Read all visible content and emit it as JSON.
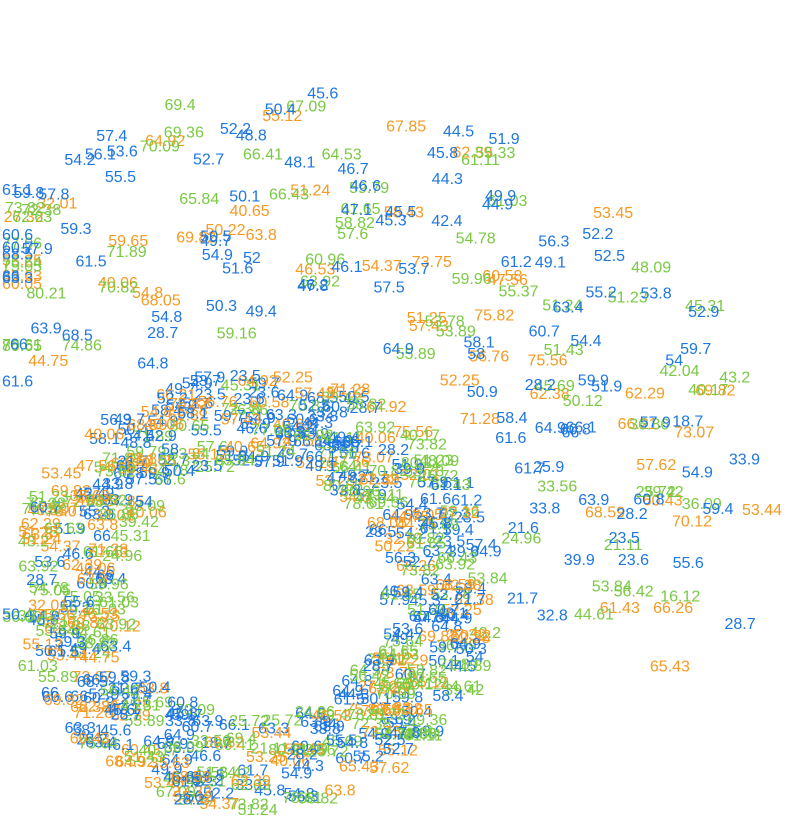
{
  "chart_data": {
    "type": "scatter",
    "title": "",
    "xlabel": "",
    "ylabel": "",
    "grid": false,
    "legend": "none",
    "axes_visible": false,
    "mark_style": "text-labels",
    "series": [
      {
        "color": "#f59a23",
        "values": [
          "44.75",
          "53.25",
          "35.63",
          "60.05",
          "27.32",
          "40.06",
          "68.05",
          "54.8",
          "32.01",
          "64.92",
          "59.65",
          "50.22",
          "69.82",
          "55.12",
          "40.65",
          "46.53",
          "63.8",
          "51.24",
          "58.43",
          "54.37",
          "67.85",
          "73.75",
          "62.39",
          "51.25",
          "57.43",
          "60.58",
          "75.82",
          "47.56",
          "53.45",
          "52.25",
          "56.76",
          "71.28",
          "75.56",
          "62.38",
          "66.21",
          "69.82",
          "73.07",
          "62.29",
          "57.62",
          "68.59",
          "53.44",
          "60.43",
          "66.26",
          "70.12",
          "61.43",
          "65.43"
        ]
      },
      {
        "color": "#7ac943",
        "values": [
          "80.65",
          "80.21",
          "78.61",
          "77.06",
          "75.64",
          "75.05",
          "74.86",
          "62.63",
          "73.82",
          "72.38",
          "71.89",
          "70.82",
          "70.09",
          "69.4",
          "69.36",
          "59.16",
          "65.84",
          "66.41",
          "66.43",
          "67.09",
          "63.92",
          "60.96",
          "61.65",
          "64.53",
          "58.82",
          "57.6",
          "59.79",
          "61.03",
          "61.11",
          "59.96",
          "54.78",
          "55.33",
          "55.89",
          "55.37",
          "53.78",
          "53.89",
          "51.23",
          "51.43",
          "51.24",
          "50.12",
          "48.09",
          "45.31",
          "45.69",
          "43.2",
          "42.04",
          "40.17",
          "36.86",
          "39.42",
          "36.09",
          "33.56",
          "24.96",
          "25.72",
          "21.11",
          "16.12",
          "53.84",
          "56.42",
          "44.61"
        ]
      },
      {
        "color": "#1f77e0",
        "values": [
          "68.5",
          "66",
          "68.5",
          "61.6",
          "66",
          "64.8",
          "63.9",
          "63.3",
          "60.7",
          "61.1",
          "61.5",
          "59.8",
          "60.6",
          "59.3",
          "28.7",
          "55.5",
          "57.9",
          "57.8",
          "57.4",
          "56.1",
          "54.8",
          "54.2",
          "54.9",
          "53.6",
          "52.7",
          "51.6",
          "52.2",
          "52",
          "50.3",
          "50.5",
          "50.1",
          "49.7",
          "50.4",
          "49.4",
          "48.8",
          "48.1",
          "47.8",
          "47.1",
          "46.7",
          "46.2",
          "46.6",
          "45.3",
          "45.6",
          "45.8",
          "46.1",
          "44.5",
          "45.5",
          "44.9",
          "44.3",
          "42.4",
          "49.9",
          "53.7",
          "57.5",
          "61.2",
          "64.9",
          "51.9",
          "49.1",
          "52.5",
          "52.2",
          "55.2",
          "58",
          "60.7",
          "63.4",
          "54.4",
          "56.3",
          "58.1",
          "59.9",
          "50.9",
          "51.9",
          "52.9",
          "54",
          "28.2",
          "61.6",
          "53.8",
          "59.7",
          "66",
          "58.4",
          "57.9",
          "61.7",
          "60.8",
          "64.9",
          "66.1",
          "33.8",
          "33.9",
          "18.7",
          "28.2",
          "25.9",
          "54.9",
          "55.6",
          "60.8",
          "59.4",
          "63.9",
          "23.5",
          "23.6",
          "21.6",
          "21.7",
          "28.7",
          "32.8",
          "39.9"
        ]
      }
    ]
  }
}
